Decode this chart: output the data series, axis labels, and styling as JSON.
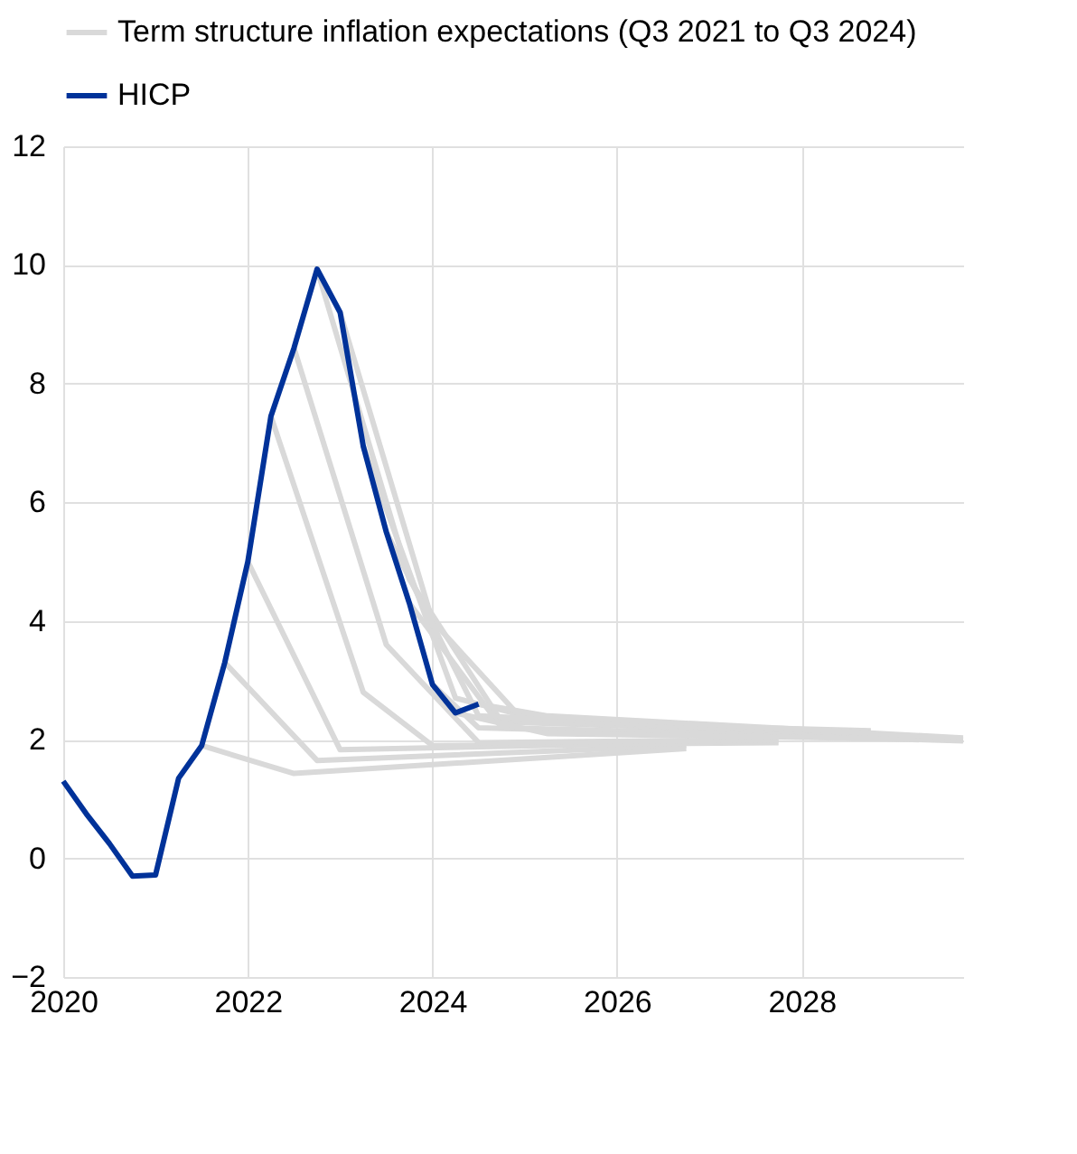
{
  "chart_data": {
    "type": "line",
    "xlim": [
      2020,
      2029.75
    ],
    "xticks": [
      2020,
      2022,
      2024,
      2026,
      2028
    ],
    "ylim": [
      -2,
      12
    ],
    "yticks": [
      -2,
      0,
      2,
      4,
      6,
      8,
      10,
      12
    ],
    "grid": true,
    "legend": "top left",
    "line_style": "solid",
    "marker": "none",
    "series": [
      {
        "name": "Term structure inflation expectations (Q3 2021 to Q3 2024)",
        "color": "#d9d9d9",
        "x": [
          2021.5,
          2022.5,
          2026.75
        ],
        "values": [
          1.9,
          1.43,
          1.85
        ]
      },
      {
        "color": "#d9d9d9",
        "x": [
          2021.75,
          2022.75,
          2026.75
        ],
        "values": [
          3.3,
          1.65,
          1.9
        ]
      },
      {
        "color": "#d9d9d9",
        "x": [
          2022.0,
          2023.0,
          2026.75
        ],
        "values": [
          5.0,
          1.83,
          1.95
        ]
      },
      {
        "color": "#d9d9d9",
        "x": [
          2022.25,
          2023.25,
          2024.0,
          2027.75
        ],
        "values": [
          7.45,
          2.8,
          1.9,
          1.95
        ]
      },
      {
        "color": "#d9d9d9",
        "x": [
          2022.5,
          2023.5,
          2024.5,
          2027.75
        ],
        "values": [
          8.6,
          3.6,
          1.95,
          2.0
        ]
      },
      {
        "color": "#d9d9d9",
        "x": [
          2022.75,
          2023.75,
          2024.75,
          2028.75
        ],
        "values": [
          9.93,
          4.7,
          2.3,
          2.1
        ]
      },
      {
        "color": "#d9d9d9",
        "x": [
          2023.0,
          2024.0,
          2025.0,
          2028.75
        ],
        "values": [
          9.2,
          4.0,
          2.3,
          2.15
        ]
      },
      {
        "color": "#d9d9d9",
        "x": [
          2023.25,
          2024.25,
          2025.25,
          2028.75
        ],
        "values": [
          6.95,
          2.7,
          2.3,
          2.1
        ]
      },
      {
        "color": "#d9d9d9",
        "x": [
          2023.5,
          2024.5,
          2029.75
        ],
        "values": [
          5.5,
          2.4,
          2.0
        ]
      },
      {
        "color": "#d9d9d9",
        "x": [
          2023.75,
          2024.75,
          2029.75
        ],
        "values": [
          4.3,
          2.2,
          2.0
        ]
      },
      {
        "color": "#d9d9d9",
        "x": [
          2024.0,
          2024.5,
          2029.75
        ],
        "values": [
          2.93,
          2.2,
          1.98
        ]
      },
      {
        "color": "#d9d9d9",
        "x": [
          2024.25,
          2025.25,
          2029.75
        ],
        "values": [
          2.45,
          2.1,
          2.0
        ]
      },
      {
        "color": "#d9d9d9",
        "x": [
          2024.5,
          2025.25,
          2029.75
        ],
        "values": [
          2.6,
          2.4,
          2.03
        ]
      },
      {
        "name": "HICP",
        "color": "#003299",
        "x": [
          2020.0,
          2020.25,
          2020.5,
          2020.75,
          2021.0,
          2021.25,
          2021.5,
          2021.75,
          2022.0,
          2022.25,
          2022.5,
          2022.75,
          2023.0,
          2023.25,
          2023.5,
          2023.75,
          2024.0,
          2024.25,
          2024.5
        ],
        "values": [
          1.3,
          0.75,
          0.25,
          -0.3,
          -0.28,
          1.35,
          1.9,
          3.3,
          5.0,
          7.45,
          8.6,
          9.93,
          9.2,
          6.95,
          5.5,
          4.3,
          2.93,
          2.45,
          2.6
        ]
      }
    ]
  }
}
